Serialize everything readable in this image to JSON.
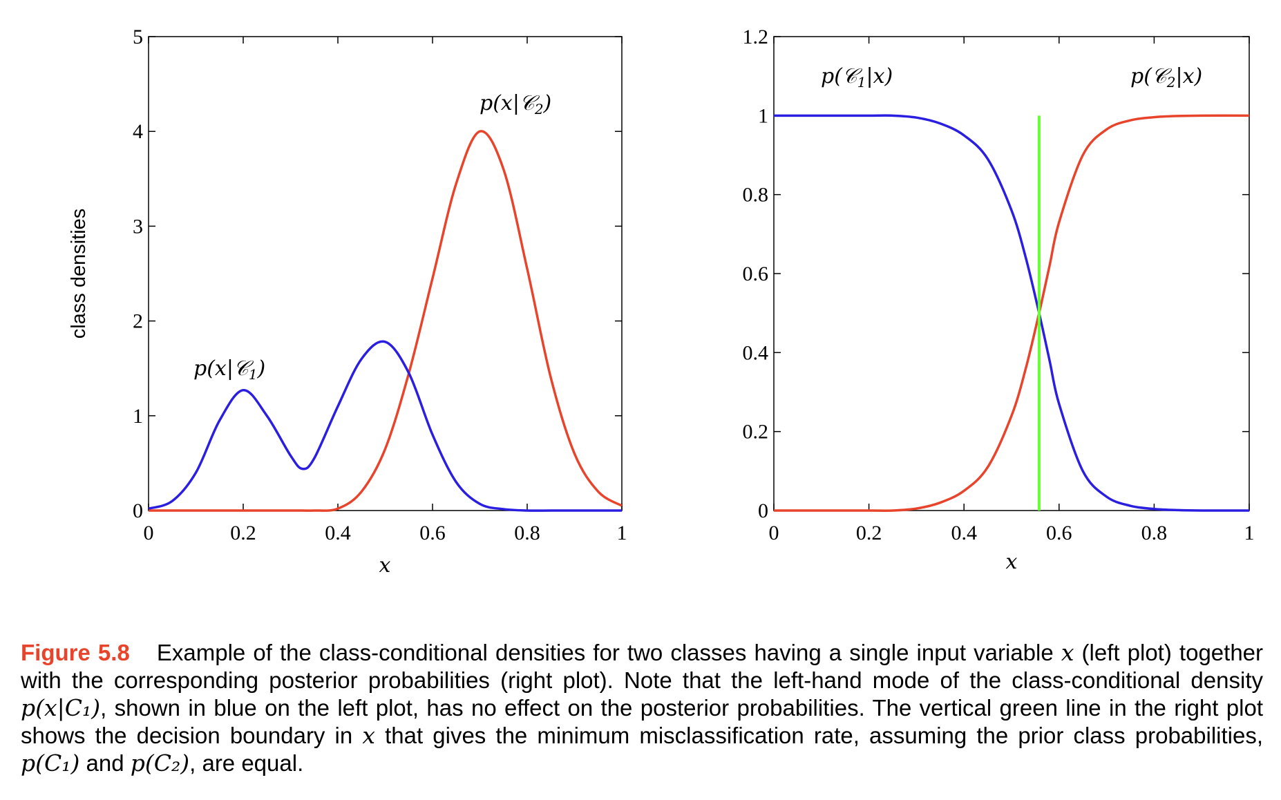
{
  "chart_data": [
    {
      "type": "line",
      "xlabel": "x",
      "ylabel": "class densities",
      "xlim": [
        0,
        1
      ],
      "ylim": [
        0,
        5
      ],
      "x_ticks": [
        "0",
        "0.2",
        "0.4",
        "0.6",
        "0.8",
        "1"
      ],
      "y_ticks": [
        "0",
        "1",
        "2",
        "3",
        "4",
        "5"
      ],
      "grid": false,
      "annotations": [
        "p(x|C1)",
        "p(x|C2)"
      ],
      "x": [
        0,
        0.05,
        0.1,
        0.15,
        0.2,
        0.25,
        0.3,
        0.325,
        0.35,
        0.4,
        0.45,
        0.5,
        0.55,
        0.6,
        0.65,
        0.7,
        0.75,
        0.8,
        0.85,
        0.9,
        0.95,
        1.0
      ],
      "series": [
        {
          "name": "p(x|C1)",
          "color": "#2a1ee0",
          "values": [
            0.02,
            0.1,
            0.4,
            0.95,
            1.27,
            1.0,
            0.58,
            0.44,
            0.55,
            1.1,
            1.6,
            1.78,
            1.45,
            0.8,
            0.3,
            0.07,
            0.015,
            0.0,
            0.0,
            0.0,
            0.0,
            0.0
          ]
        },
        {
          "name": "p(x|C2)",
          "color": "#e8442b",
          "values": [
            0.0,
            0.0,
            0.0,
            0.0,
            0.0,
            0.0,
            0.0,
            0.0,
            0.0,
            0.02,
            0.2,
            0.65,
            1.45,
            2.45,
            3.45,
            4.0,
            3.6,
            2.55,
            1.4,
            0.6,
            0.2,
            0.05
          ]
        }
      ]
    },
    {
      "type": "line",
      "xlabel": "x",
      "ylabel": "",
      "xlim": [
        0,
        1
      ],
      "ylim": [
        0,
        1.2
      ],
      "x_ticks": [
        "0",
        "0.2",
        "0.4",
        "0.6",
        "0.8",
        "1"
      ],
      "y_ticks": [
        "0",
        "0.2",
        "0.4",
        "0.6",
        "0.8",
        "1",
        "1.2"
      ],
      "grid": false,
      "annotations": [
        "p(C1|x)",
        "p(C2|x)"
      ],
      "decision_boundary": {
        "x": 0.558,
        "y_range": [
          0,
          1
        ],
        "color": "#66ff33"
      },
      "x": [
        0,
        0.1,
        0.2,
        0.25,
        0.3,
        0.35,
        0.4,
        0.45,
        0.5,
        0.53,
        0.558,
        0.58,
        0.6,
        0.65,
        0.7,
        0.75,
        0.8,
        0.85,
        0.9,
        1.0
      ],
      "series": [
        {
          "name": "p(C1|x)",
          "color": "#2a1ee0",
          "values": [
            1.0,
            1.0,
            1.0,
            1.0,
            0.995,
            0.98,
            0.95,
            0.89,
            0.76,
            0.64,
            0.5,
            0.38,
            0.27,
            0.1,
            0.035,
            0.012,
            0.004,
            0.001,
            0.0,
            0.0
          ]
        },
        {
          "name": "p(C2|x)",
          "color": "#e8442b",
          "values": [
            0.0,
            0.0,
            0.0,
            0.0,
            0.005,
            0.02,
            0.05,
            0.11,
            0.24,
            0.36,
            0.5,
            0.62,
            0.73,
            0.9,
            0.965,
            0.988,
            0.996,
            0.999,
            1.0,
            1.0
          ]
        }
      ]
    }
  ],
  "caption": {
    "label": "Figure 5.8",
    "line1": "Example of the class-conditional densities for two classes having a single input variable",
    "var_x": "x",
    "line1_end": "(left plot) together with the corresponding posterior probabilities (right plot). Note that the left-hand mode of the class-conditional density",
    "pxc1": "p(x|C₁)",
    "middle": ", shown in blue on the left plot, has no effect on the posterior probabilities. The vertical green line in the right plot shows the decision boundary in",
    "after_x": "that gives the minimum misclassification rate, assuming the prior class probabilities,",
    "pc1": "p(C₁)",
    "and": "and",
    "pc2": "p(C₂)",
    "end": ", are equal."
  }
}
